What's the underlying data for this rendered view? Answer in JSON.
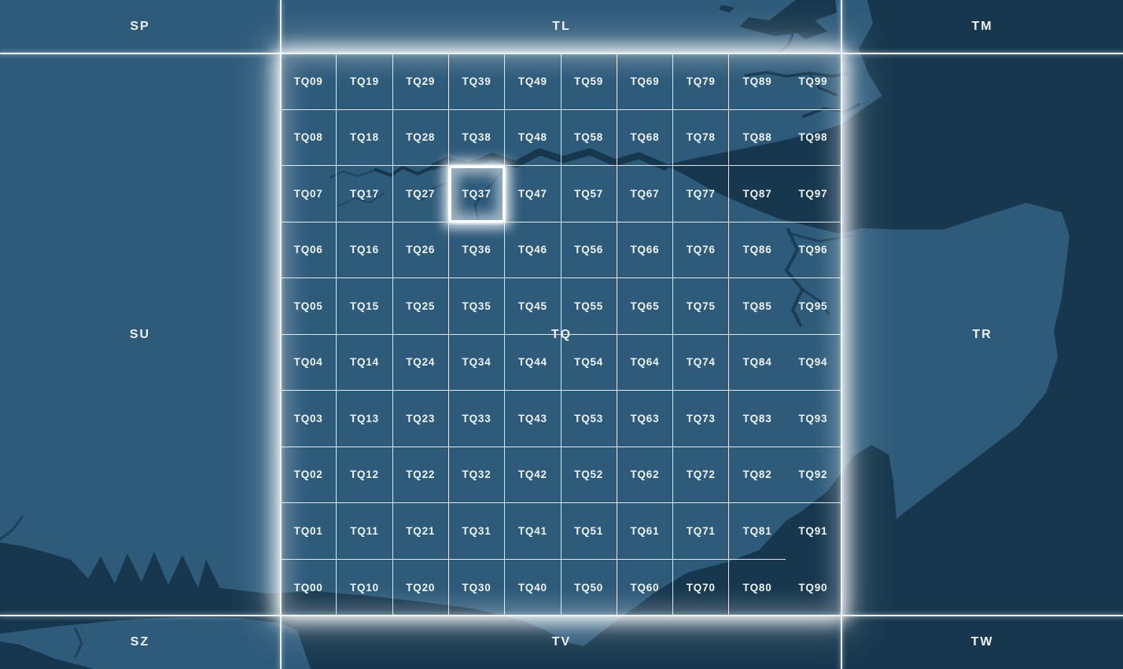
{
  "colors": {
    "sea": "#16374d",
    "land": "#2e5b7a",
    "grid_line": "#ffffff",
    "km100_line": "#f3f9fc",
    "label_text": "#eef5f8",
    "highlight": "#ffffff"
  },
  "squares": [
    {
      "id": "SP",
      "label": "SP"
    },
    {
      "id": "TL",
      "label": "TL"
    },
    {
      "id": "TM",
      "label": "TM"
    },
    {
      "id": "SU",
      "label": "SU"
    },
    {
      "id": "TQ",
      "label": "TQ"
    },
    {
      "id": "TR",
      "label": "TR"
    },
    {
      "id": "SZ",
      "label": "SZ"
    },
    {
      "id": "TV",
      "label": "TV"
    },
    {
      "id": "TW",
      "label": "TW"
    }
  ],
  "tq_grid": {
    "prefix": "TQ",
    "highlighted": "TQ37",
    "rows": [
      [
        "TQ09",
        "TQ19",
        "TQ29",
        "TQ39",
        "TQ49",
        "TQ59",
        "TQ69",
        "TQ79",
        "TQ89",
        "TQ99"
      ],
      [
        "TQ08",
        "TQ18",
        "TQ28",
        "TQ38",
        "TQ48",
        "TQ58",
        "TQ68",
        "TQ78",
        "TQ88",
        "TQ98"
      ],
      [
        "TQ07",
        "TQ17",
        "TQ27",
        "TQ37",
        "TQ47",
        "TQ57",
        "TQ67",
        "TQ77",
        "TQ87",
        "TQ97"
      ],
      [
        "TQ06",
        "TQ16",
        "TQ26",
        "TQ36",
        "TQ46",
        "TQ56",
        "TQ66",
        "TQ76",
        "TQ86",
        "TQ96"
      ],
      [
        "TQ05",
        "TQ15",
        "TQ25",
        "TQ35",
        "TQ45",
        "TQ55",
        "TQ65",
        "TQ75",
        "TQ85",
        "TQ95"
      ],
      [
        "TQ04",
        "TQ14",
        "TQ24",
        "TQ34",
        "TQ44",
        "TQ54",
        "TQ64",
        "TQ74",
        "TQ84",
        "TQ94"
      ],
      [
        "TQ03",
        "TQ13",
        "TQ23",
        "TQ33",
        "TQ43",
        "TQ53",
        "TQ63",
        "TQ73",
        "TQ83",
        "TQ93"
      ],
      [
        "TQ02",
        "TQ12",
        "TQ22",
        "TQ32",
        "TQ42",
        "TQ52",
        "TQ62",
        "TQ72",
        "TQ82",
        "TQ92"
      ],
      [
        "TQ01",
        "TQ11",
        "TQ21",
        "TQ31",
        "TQ41",
        "TQ51",
        "TQ61",
        "TQ71",
        "TQ81",
        "TQ91"
      ],
      [
        "TQ00",
        "TQ10",
        "TQ20",
        "TQ30",
        "TQ40",
        "TQ50",
        "TQ60",
        "TQ70",
        "TQ80",
        "TQ90"
      ]
    ]
  }
}
